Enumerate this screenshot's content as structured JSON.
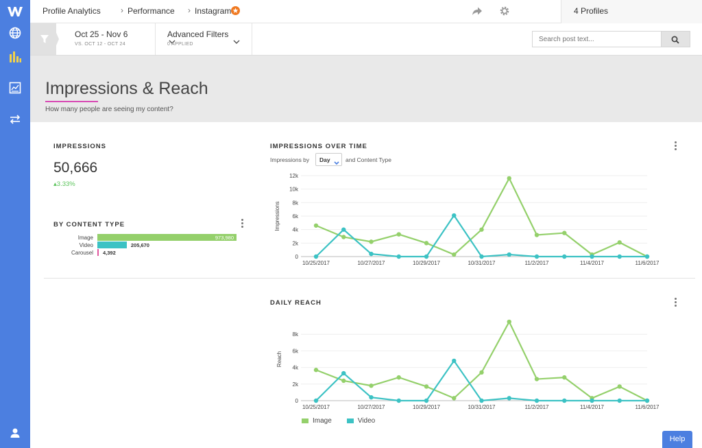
{
  "breadcrumb": [
    "Profile Analytics",
    "Performance",
    "Instagram"
  ],
  "profiles_label": "4 Profiles",
  "date_filter": {
    "range": "Oct 25 - Nov 6",
    "compare": "VS. OCT 12 - OCT 24"
  },
  "advanced_filters": {
    "label": "Advanced Filters",
    "sub": "0 APPLIED"
  },
  "search": {
    "placeholder": "Search post text..."
  },
  "page": {
    "title": "Impressions & Reach",
    "subtitle": "How many people are seeing my content?"
  },
  "impressions": {
    "label": "IMPRESSIONS",
    "value": "50,666",
    "change": "3.33%"
  },
  "by_content": {
    "title": "BY CONTENT TYPE",
    "rows": [
      {
        "label": "Image",
        "value": "973,980",
        "num": 973980,
        "color": "#94d06b"
      },
      {
        "label": "Video",
        "value": "205,670",
        "num": 205670,
        "color": "#3cc2c4"
      },
      {
        "label": "Carousel",
        "value": "4,392",
        "num": 4392,
        "color": "#e0559e"
      }
    ]
  },
  "impressions_chart": {
    "title": "IMPRESSIONS OVER TIME",
    "controls": {
      "prefix": "Impressions by",
      "select": "Day",
      "suffix": "and Content Type"
    }
  },
  "reach_chart": {
    "title": "DAILY REACH"
  },
  "legend": [
    {
      "name": "Image",
      "color": "#94d06b"
    },
    {
      "name": "Video",
      "color": "#3cc2c4"
    }
  ],
  "help_label": "Help",
  "chart_data": [
    {
      "type": "line",
      "title": "IMPRESSIONS OVER TIME",
      "ylabel": "Impressions",
      "ylim": [
        0,
        12000
      ],
      "yticks": [
        "0",
        "2k",
        "4k",
        "6k",
        "8k",
        "10k",
        "12k"
      ],
      "x": [
        "10/25/2017",
        "10/26/2017",
        "10/27/2017",
        "10/28/2017",
        "10/29/2017",
        "10/30/2017",
        "10/31/2017",
        "11/1/2017",
        "11/2/2017",
        "11/3/2017",
        "11/4/2017",
        "11/5/2017",
        "11/6/2017"
      ],
      "xticks": [
        "10/25/2017",
        "10/27/2017",
        "10/29/2017",
        "10/31/2017",
        "11/2/2017",
        "11/4/2017",
        "11/6/2017"
      ],
      "series": [
        {
          "name": "Image",
          "values": [
            4600,
            2900,
            2200,
            3300,
            2000,
            300,
            4000,
            11600,
            3200,
            3500,
            300,
            2100,
            0
          ]
        },
        {
          "name": "Video",
          "values": [
            0,
            4000,
            400,
            0,
            0,
            6100,
            0,
            300,
            0,
            0,
            0,
            0,
            0
          ]
        }
      ]
    },
    {
      "type": "line",
      "title": "DAILY REACH",
      "ylabel": "Reach",
      "ylim": [
        0,
        10000
      ],
      "yticks": [
        "0",
        "2k",
        "4k",
        "6k",
        "8k"
      ],
      "x": [
        "10/25/2017",
        "10/26/2017",
        "10/27/2017",
        "10/28/2017",
        "10/29/2017",
        "10/30/2017",
        "10/31/2017",
        "11/1/2017",
        "11/2/2017",
        "11/3/2017",
        "11/4/2017",
        "11/5/2017",
        "11/6/2017"
      ],
      "xticks": [
        "10/25/2017",
        "10/27/2017",
        "10/29/2017",
        "10/31/2017",
        "11/2/2017",
        "11/4/2017",
        "11/6/2017"
      ],
      "series": [
        {
          "name": "Image",
          "values": [
            3700,
            2400,
            1800,
            2800,
            1700,
            300,
            3400,
            9500,
            2600,
            2800,
            300,
            1700,
            0
          ]
        },
        {
          "name": "Video",
          "values": [
            0,
            3300,
            400,
            0,
            0,
            4800,
            0,
            300,
            0,
            0,
            0,
            0,
            0
          ]
        }
      ]
    }
  ]
}
